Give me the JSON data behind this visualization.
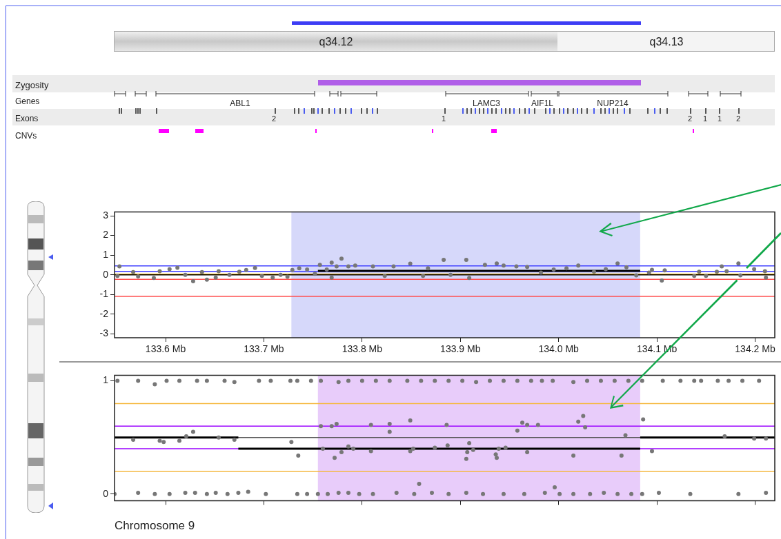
{
  "chart_data": [
    {
      "type": "scatter",
      "marker": "circle",
      "grid": false,
      "legend": false,
      "xlim": [
        133.548,
        134.22
      ],
      "ylim": [
        -3.2,
        3.2
      ],
      "xticks": [
        {
          "value": 133.6,
          "label": "133.6 Mb"
        },
        {
          "value": 133.7,
          "label": "133.7 Mb"
        },
        {
          "value": 133.8,
          "label": "133.8 Mb"
        },
        {
          "value": 133.9,
          "label": "133.9 Mb"
        },
        {
          "value": 134.0,
          "label": "134.0 Mb"
        },
        {
          "value": 134.1,
          "label": "134.1 Mb"
        },
        {
          "value": 134.2,
          "label": "134.2 Mb"
        }
      ],
      "yticks": [
        -3,
        -2,
        -1,
        0,
        1,
        2,
        3
      ],
      "series": [
        {
          "type": "scatter",
          "color": "#777777",
          "x": [
            133.553,
            133.551,
            133.567,
            133.572,
            133.588,
            133.594,
            133.604,
            133.612,
            133.62,
            133.628,
            133.637,
            133.642,
            133.651,
            133.654,
            133.665,
            133.675,
            133.682,
            133.691,
            133.698,
            133.709,
            133.717,
            133.724,
            133.729,
            133.736,
            133.744,
            133.752,
            133.757,
            133.764,
            133.769,
            133.769,
            133.774,
            133.779,
            133.786,
            133.793,
            133.811,
            133.823,
            133.832,
            133.849,
            133.862,
            133.867,
            133.883,
            133.89,
            133.906,
            133.909,
            133.925,
            133.937,
            133.944,
            133.957,
            133.968,
            133.982,
            133.995,
            134.008,
            134.02,
            134.036,
            134.048,
            134.06,
            134.069,
            134.079,
            134.092,
            134.095,
            134.105,
            134.108,
            134.138,
            134.143,
            134.15,
            134.161,
            134.166,
            134.171,
            134.183,
            134.185,
            134.199,
            134.21,
            134.211
          ],
          "values": [
            0.43,
            -0.05,
            0.14,
            -0.08,
            -0.16,
            0.18,
            0.29,
            0.36,
            0,
            -0.33,
            0.14,
            -0.25,
            -0.14,
            0.18,
            0,
            0.16,
            0.24,
            0.35,
            -0.05,
            -0.14,
            0,
            -0.1,
            0.24,
            0.33,
            0.27,
            0.05,
            0.51,
            0.27,
            -0.14,
            0.62,
            0.43,
            0.82,
            0.43,
            0.47,
            0.43,
            -0.05,
            0.43,
            0.57,
            -0.05,
            0.33,
            0.76,
            0,
            0.76,
            -0.16,
            0.51,
            0.58,
            0.47,
            0.43,
            0.4,
            0.11,
            0.27,
            0.33,
            0.47,
            0.16,
            0.29,
            0.58,
            0.38,
            -0.03,
            0.11,
            0.25,
            -0.29,
            0.23,
            -0.05,
            0.16,
            -0.05,
            0.16,
            0.43,
            0.18,
            0.58,
            -0.03,
            0.29,
            0.18,
            -0.14
          ]
        },
        {
          "type": "line",
          "marker": "none",
          "color": "#000000",
          "x": [
            133.755,
            134.083
          ],
          "values": [
            0.2,
            0.2
          ]
        }
      ],
      "ref_lines": [
        {
          "axis": "y",
          "value": 0.45,
          "color": "#4040ff"
        },
        {
          "axis": "y",
          "value": 0.17,
          "color": "#4040ff"
        },
        {
          "axis": "y",
          "value": 0.03,
          "color": "#f0b000"
        },
        {
          "axis": "y",
          "value": 0,
          "color": "#000000"
        },
        {
          "axis": "y",
          "value": -0.23,
          "color": "#ff5050"
        },
        {
          "axis": "y",
          "value": -1.1,
          "color": "#ff5050"
        }
      ],
      "bands": [
        {
          "axis": "x",
          "from": 133.728,
          "to": 134.083,
          "color": "#d6d8fa"
        }
      ],
      "annotations": [
        "q34.12",
        "q34.13",
        "Zygosity",
        "Genes",
        "Exons",
        "CNVs",
        "ABL1",
        "LAMC3",
        "AIF1L",
        "NUP214",
        "2",
        "1",
        "2",
        "1",
        "1",
        "2"
      ]
    },
    {
      "type": "scatter",
      "marker": "circle",
      "grid": false,
      "legend": false,
      "tick_labels": "y",
      "xlim": [
        133.548,
        134.22
      ],
      "ylim": [
        -0.06,
        1.05
      ],
      "xticks": [
        {
          "value": 133.6,
          "label": null
        },
        {
          "value": 133.7,
          "label": null
        },
        {
          "value": 133.8,
          "label": null
        },
        {
          "value": 133.9,
          "label": null
        },
        {
          "value": 134.0,
          "label": null
        },
        {
          "value": 134.1,
          "label": null
        },
        {
          "value": 134.2,
          "label": null
        }
      ],
      "yticks": [
        0,
        1
      ],
      "series": [
        {
          "type": "scatter",
          "color": "#777777",
          "x": [
            133.551,
            133.572,
            133.589,
            133.601,
            133.614,
            133.632,
            133.642,
            133.66,
            133.67,
            133.695,
            133.707,
            133.727,
            133.734,
            133.748,
            133.758,
            133.776,
            133.786,
            133.8,
            133.814,
            133.828,
            133.846,
            133.86,
            133.874,
            133.888,
            133.902,
            133.916,
            133.93,
            133.944,
            133.958,
            133.972,
            133.983,
            133.994,
            134.015,
            134.029,
            134.043,
            134.057,
            134.071,
            134.085,
            134.106,
            134.124,
            134.138,
            134.145,
            134.162,
            134.173,
            134.187,
            134.204,
            133.548,
            133.572,
            133.589,
            133.604,
            133.62,
            133.63,
            133.642,
            133.651,
            133.663,
            133.674,
            133.684,
            133.702,
            133.734,
            133.744,
            133.755,
            133.765,
            133.776,
            133.786,
            133.797,
            133.811,
            133.835,
            133.853,
            133.871,
            133.888,
            133.906,
            133.923,
            133.944,
            133.965,
            133.986,
            134.001,
            134.015,
            134.032,
            134.046,
            134.06,
            134.074,
            134.085,
            134.102,
            134.134,
            134.183,
            134.211,
            133.567,
            133.594,
            133.598,
            133.614,
            133.621,
            133.628,
            133.654,
            133.67,
            133.728,
            133.735,
            133.758,
            133.76,
            133.769,
            133.772,
            133.774,
            133.779,
            133.786,
            133.791,
            133.809,
            133.809,
            133.828,
            133.828,
            133.849,
            133.849,
            133.852,
            133.858,
            133.874,
            133.886,
            133.887,
            133.906,
            133.907,
            133.909,
            133.913,
            133.936,
            133.937,
            133.939,
            133.946,
            133.958,
            133.963,
            133.968,
            133.968,
            133.979,
            133.996,
            134.015,
            134.02,
            134.025,
            134.027,
            134.064,
            134.068,
            134.086,
            134.095,
            134.169,
            134.199,
            134.211
          ],
          "values": [
            1,
            1,
            0.97,
            1,
            1,
            1,
            1,
            1,
            0.99,
            1,
            1,
            1,
            1,
            1,
            1,
            0.99,
            1,
            1,
            1,
            1,
            1,
            1,
            1,
            1,
            1,
            0.99,
            1,
            1,
            1,
            1,
            1,
            1,
            0.99,
            1,
            1,
            1,
            1,
            1,
            1,
            1,
            1,
            1,
            1,
            1,
            1,
            1,
            0,
            0.01,
            0,
            0,
            0.01,
            0.01,
            0,
            0.01,
            0,
            0.01,
            0.02,
            0,
            0,
            0,
            0,
            0,
            0.01,
            0.01,
            0,
            0,
            0.01,
            0,
            0.01,
            0,
            0.01,
            0,
            0,
            0,
            0.01,
            0,
            0,
            0,
            0.01,
            0,
            0,
            0,
            0.01,
            0,
            0,
            0.01,
            0.48,
            0.47,
            0.46,
            0.47,
            0.51,
            0.55,
            0.5,
            0.48,
            0.46,
            0.34,
            0.6,
            0.4,
            0.6,
            0.32,
            0.62,
            0.37,
            0.42,
            0.4,
            0.38,
            0.61,
            0.62,
            0.55,
            0.65,
            0.38,
            0.4,
            0.09,
            0.41,
            0.61,
            0.43,
            0.31,
            0.37,
            0.45,
            0.39,
            0.35,
            0.32,
            0.4,
            0.41,
            0.56,
            0.63,
            0.61,
            0.37,
            0.61,
            0.06,
            0.34,
            0.64,
            0.69,
            0.59,
            0.34,
            0.52,
            0.66,
            0.38,
            0.51,
            0.49,
            0.49
          ]
        },
        {
          "type": "line",
          "marker": "none",
          "color": "#000000",
          "x": [
            133.548,
            133.674
          ],
          "values": [
            0.5,
            0.5
          ]
        },
        {
          "type": "line",
          "marker": "none",
          "color": "#000000",
          "x": [
            133.674,
            134.083
          ],
          "values": [
            0.4,
            0.4
          ]
        },
        {
          "type": "line",
          "marker": "none",
          "color": "#000000",
          "x": [
            134.083,
            134.22
          ],
          "values": [
            0.5,
            0.5
          ]
        }
      ],
      "ref_lines": [
        {
          "axis": "y",
          "value": 0.8,
          "color": "#f5b942"
        },
        {
          "axis": "y",
          "value": 0.6,
          "color": "#9900ff"
        },
        {
          "axis": "y",
          "value": 0.5,
          "color": "#555555"
        },
        {
          "axis": "y",
          "value": 0.4,
          "color": "#9900ff"
        },
        {
          "axis": "y",
          "value": 0.2,
          "color": "#f5b942"
        }
      ],
      "bands": [
        {
          "axis": "x",
          "from": 133.755,
          "to": 134.083,
          "color": "#e8ccfa"
        }
      ],
      "annotations": [
        "Chromosome 9"
      ]
    }
  ]
}
